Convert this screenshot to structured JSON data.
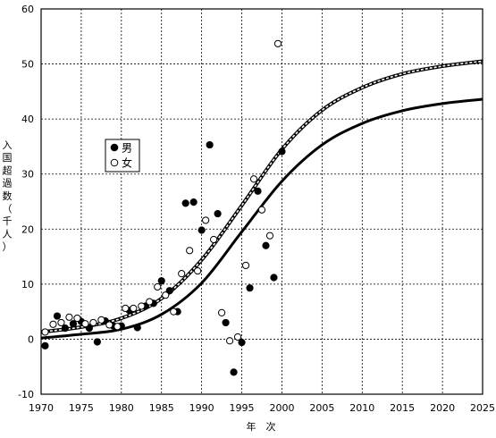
{
  "chart_data": {
    "type": "scatter",
    "title": "",
    "xlabel": "年　次",
    "ylabel": "入国超過数（千人）",
    "xlim": [
      1970,
      2025
    ],
    "ylim": [
      -10,
      60
    ],
    "xticks": [
      1970,
      1975,
      1980,
      1985,
      1990,
      1995,
      2000,
      2005,
      2010,
      2015,
      2020,
      2025
    ],
    "yticks": [
      -10,
      0,
      10,
      20,
      30,
      40,
      50,
      60
    ],
    "grid": true,
    "legend_position": "left-middle",
    "series": [
      {
        "name": "男",
        "marker": "filled-circle",
        "color": "#000000",
        "points": [
          [
            1970.5,
            -1.2
          ],
          [
            1972,
            4.2
          ],
          [
            1973,
            2.0
          ],
          [
            1974,
            2.8
          ],
          [
            1975,
            3.2
          ],
          [
            1976,
            2.0
          ],
          [
            1977,
            -0.5
          ],
          [
            1978,
            3.3
          ],
          [
            1979,
            2.4
          ],
          [
            1980,
            2.4
          ],
          [
            1981,
            5.2
          ],
          [
            1982,
            2.1
          ],
          [
            1983,
            6.0
          ],
          [
            1984,
            6.5
          ],
          [
            1985,
            10.6
          ],
          [
            1986,
            8.8
          ],
          [
            1987,
            5.0
          ],
          [
            1988,
            24.7
          ],
          [
            1989,
            24.9
          ],
          [
            1990,
            19.8
          ],
          [
            1991,
            35.3
          ],
          [
            1992,
            22.8
          ],
          [
            1993,
            3.0
          ],
          [
            1994,
            -6.0
          ],
          [
            1995,
            -0.6
          ],
          [
            1996,
            9.3
          ],
          [
            1997,
            26.9
          ],
          [
            1998,
            17.0
          ],
          [
            1999,
            11.2
          ],
          [
            2000,
            34.1
          ]
        ]
      },
      {
        "name": "女",
        "marker": "open-circle",
        "color": "#000000",
        "points": [
          [
            1970.5,
            1.3
          ],
          [
            1971.5,
            2.7
          ],
          [
            1972.5,
            3.0
          ],
          [
            1973.5,
            4.0
          ],
          [
            1974.5,
            3.8
          ],
          [
            1975.5,
            2.8
          ],
          [
            1976.5,
            3.0
          ],
          [
            1977.5,
            3.5
          ],
          [
            1978.5,
            2.6
          ],
          [
            1979.5,
            2.3
          ],
          [
            1980.5,
            5.6
          ],
          [
            1981.5,
            5.6
          ],
          [
            1982.5,
            6.0
          ],
          [
            1983.5,
            6.8
          ],
          [
            1984.5,
            9.5
          ],
          [
            1985.5,
            8.0
          ],
          [
            1986.5,
            5.0
          ],
          [
            1987.5,
            11.9
          ],
          [
            1988.5,
            16.1
          ],
          [
            1989.5,
            12.4
          ],
          [
            1990.5,
            21.6
          ],
          [
            1991.5,
            18.1
          ],
          [
            1992.5,
            4.8
          ],
          [
            1993.5,
            -0.3
          ],
          [
            1994.5,
            0.4
          ],
          [
            1995.5,
            13.4
          ],
          [
            1996.5,
            29.1
          ],
          [
            1997.5,
            23.5
          ],
          [
            1998.5,
            18.8
          ],
          [
            1999.5,
            53.7
          ]
        ]
      }
    ],
    "fitted_curves": [
      {
        "name": "男",
        "line_style": "solid-thick",
        "color": "#000000",
        "points": [
          [
            1970,
            0.2
          ],
          [
            1975,
            0.9
          ],
          [
            1980,
            1.8
          ],
          [
            1985,
            4.5
          ],
          [
            1990,
            10.2
          ],
          [
            1995,
            19.5
          ],
          [
            2000,
            28.7
          ],
          [
            2005,
            35.3
          ],
          [
            2010,
            39.2
          ],
          [
            2015,
            41.5
          ],
          [
            2020,
            42.8
          ],
          [
            2025,
            43.6
          ]
        ]
      },
      {
        "name": "女",
        "line_style": "dashed-double",
        "color": "#000000",
        "points": [
          [
            1970,
            1.3
          ],
          [
            1975,
            2.2
          ],
          [
            1980,
            3.8
          ],
          [
            1985,
            7.4
          ],
          [
            1990,
            14.4
          ],
          [
            1995,
            24.3
          ],
          [
            2000,
            34.5
          ],
          [
            2005,
            41.6
          ],
          [
            2010,
            45.7
          ],
          [
            2015,
            48.2
          ],
          [
            2020,
            49.6
          ],
          [
            2025,
            50.5
          ]
        ]
      }
    ],
    "legend": [
      {
        "label": "男",
        "marker": "filled-circle"
      },
      {
        "label": "女",
        "marker": "open-circle"
      }
    ]
  }
}
